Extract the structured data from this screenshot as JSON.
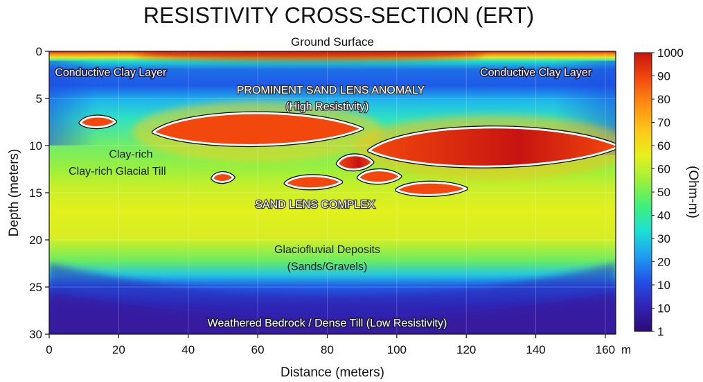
{
  "title": "RESISTIVITY CROSS-SECTION (ERT)",
  "surface_label": "Ground Surface",
  "chart_data": {
    "type": "heatmap",
    "x": {
      "label": "Distance (meters)",
      "unit_label": "m",
      "range": [
        0,
        163
      ],
      "ticks": [
        0,
        20,
        40,
        60,
        80,
        100,
        120,
        140,
        160
      ]
    },
    "y": {
      "label": "Depth (meters)",
      "range": [
        0,
        30
      ],
      "inverted": true,
      "ticks": [
        0,
        5,
        10,
        15,
        20,
        25,
        30
      ]
    },
    "colorbar": {
      "label": "(Ohm-m)",
      "tick_labels": [
        "1000",
        "90",
        "80",
        "70",
        "60",
        "60",
        "50",
        "40",
        "30",
        "20",
        "10",
        "10",
        "1"
      ],
      "colors": [
        "#2b0a75",
        "#3322b5",
        "#1f52e6",
        "#1e9ef0",
        "#1ce0d4",
        "#3ef07a",
        "#9cf03a",
        "#e6f01e",
        "#ffc81a",
        "#ff8a12",
        "#f2480e",
        "#c71410"
      ]
    },
    "grid": true,
    "layers": [
      {
        "name": "Conductive Clay Layer",
        "depth_top": 1,
        "depth_bottom": 5,
        "resistivity": 10
      },
      {
        "name": "Clay-rich Glacial Till",
        "depth_top": 5,
        "depth_bottom": 15,
        "resistivity": 30
      },
      {
        "name": "Glaciofluvial Deposits (Sands/Gravels)",
        "depth_top": 15,
        "depth_bottom": 24,
        "resistivity": 60
      },
      {
        "name": "Weathered Bedrock / Dense Till (Low Resistivity)",
        "depth_top": 25,
        "depth_bottom": 30,
        "resistivity": 5
      }
    ],
    "anomalies": [
      {
        "id": "lens-a",
        "x_center": 14,
        "depth_center": 7.5,
        "x_halfwidth": 5,
        "depth_halfwidth": 0.6,
        "resistivity": 70
      },
      {
        "id": "lens-b",
        "x_center": 60,
        "depth_center": 8.3,
        "x_halfwidth": 30,
        "depth_halfwidth": 1.8,
        "resistivity": 75
      },
      {
        "id": "lens-c",
        "x_center": 128,
        "depth_center": 10.2,
        "x_halfwidth": 36,
        "depth_halfwidth": 2.2,
        "resistivity": 85
      },
      {
        "id": "lens-d",
        "x_center": 88,
        "depth_center": 11.8,
        "x_halfwidth": 5,
        "depth_halfwidth": 0.8,
        "resistivity": 80
      },
      {
        "id": "lens-e",
        "x_center": 50,
        "depth_center": 13.4,
        "x_halfwidth": 3,
        "depth_halfwidth": 0.5,
        "resistivity": 70
      },
      {
        "id": "lens-f",
        "x_center": 76,
        "depth_center": 13.9,
        "x_halfwidth": 8,
        "depth_halfwidth": 0.7,
        "resistivity": 72
      },
      {
        "id": "lens-g",
        "x_center": 95,
        "depth_center": 13.3,
        "x_halfwidth": 6,
        "depth_halfwidth": 0.7,
        "resistivity": 72
      },
      {
        "id": "lens-h",
        "x_center": 110,
        "depth_center": 14.6,
        "x_halfwidth": 10,
        "depth_halfwidth": 0.7,
        "resistivity": 70
      }
    ],
    "annotations": {
      "clay_left": "Conductive Clay Layer",
      "clay_right": "Conductive Clay Layer",
      "sand_lens_title": "PROMINENT SAND LENS ANOMALY",
      "sand_lens_sub": "(High Resistivity)",
      "till_line1": "Clay-rich",
      "till_line2": "Clay-rich Glacial Till",
      "complex": "SAND LENS COMPLEX",
      "glacio_line1": "Glaciofluvial Deposits",
      "glacio_line2": "(Sands/Gravels)",
      "bedrock": "Weathered Bedrock / Dense Till (Low Resistivity)"
    }
  }
}
